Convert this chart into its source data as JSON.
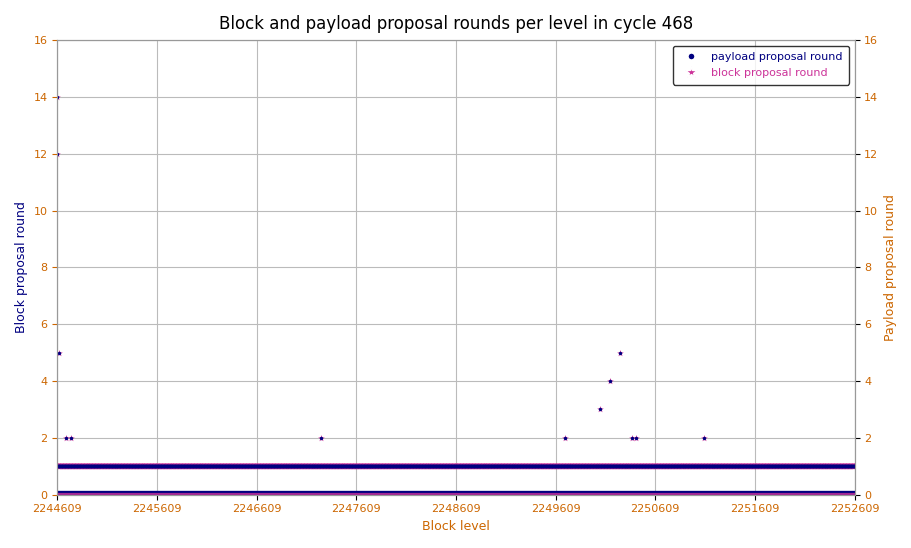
{
  "title": "Block and payload proposal rounds per level in cycle 468",
  "xlabel": "Block level",
  "ylabel_left": "Block proposal round",
  "ylabel_right": "Payload proposal round",
  "x_start": 2244609,
  "x_end": 2252609,
  "x_ticks": [
    2244609,
    2245609,
    2246609,
    2247609,
    2248609,
    2249609,
    2250609,
    2251609,
    2252609
  ],
  "ylim": [
    0,
    16
  ],
  "y_ticks": [
    0,
    2,
    4,
    6,
    8,
    10,
    12,
    14,
    16
  ],
  "title_color": "#000000",
  "xlabel_color": "#cc6600",
  "ylabel_left_color": "#000080",
  "ylabel_right_color": "#cc6600",
  "tick_color_x": "#cc6600",
  "tick_color_y_left": "#cc6600",
  "tick_color_y_right": "#cc6600",
  "payload_color": "#000080",
  "block_color": "#cc3399",
  "legend_payload_label": "payload proposal round",
  "legend_block_label": "block proposal round",
  "legend_payload_color": "#000080",
  "legend_block_color": "#cc3399",
  "background_color": "#ffffff",
  "grid_color": "#bbbbbb",
  "title_fontsize": 12,
  "label_fontsize": 9,
  "tick_fontsize": 8
}
